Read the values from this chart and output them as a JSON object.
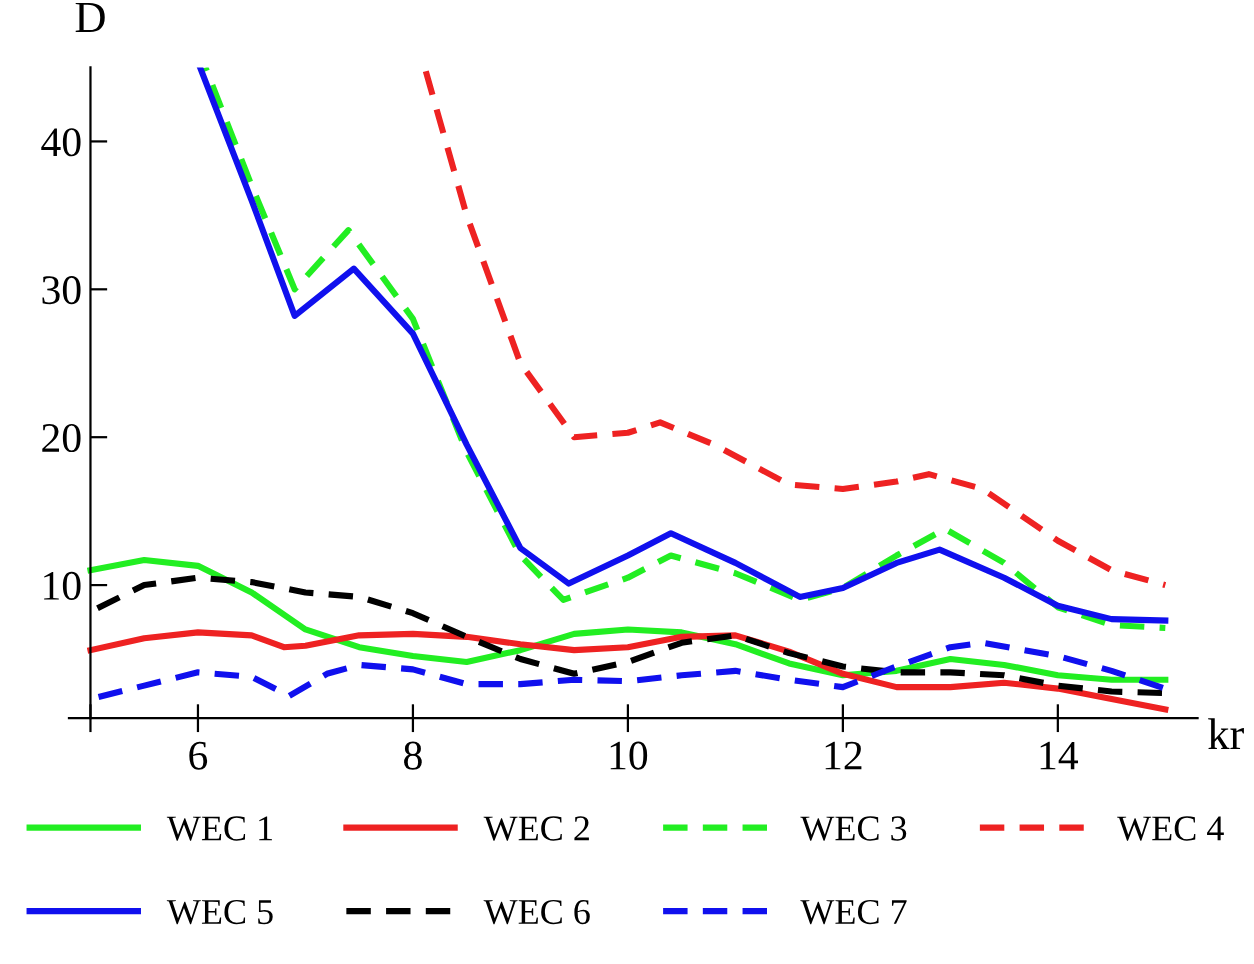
{
  "chart_data": {
    "type": "line",
    "xlabel": "kr",
    "ylabel": "D",
    "xlim": [
      4.8,
      15.3
    ],
    "ylim": [
      1,
      45
    ],
    "xticks": [
      {
        "value": 5,
        "label": null
      },
      6,
      8,
      10,
      12,
      14
    ],
    "yticks": [
      10,
      20,
      30,
      40
    ],
    "grid": false,
    "legend": "bottom",
    "series": [
      {
        "name": "WEC 1",
        "color": "#22ee22",
        "line_style": "solid",
        "x": [
          5,
          5.5,
          6,
          6.5,
          7,
          7.5,
          8,
          8.5,
          9,
          9.5,
          10,
          10.5,
          11,
          11.5,
          12,
          12.5,
          13,
          13.5,
          14,
          14.5,
          15
        ],
        "values": [
          11,
          11.7,
          11.3,
          9.5,
          7,
          5.8,
          5.2,
          4.8,
          5.6,
          6.7,
          7,
          6.8,
          6,
          4.7,
          3.9,
          4.2,
          5,
          4.6,
          3.9,
          3.6,
          3.6
        ]
      },
      {
        "name": "WEC 2",
        "color": "#ee2222",
        "line_style": "solid",
        "x": [
          5,
          5.5,
          6,
          6.5,
          6.8,
          7,
          7.5,
          8,
          8.5,
          9,
          9.5,
          10,
          10.5,
          11,
          11.5,
          12,
          12.5,
          13,
          13.5,
          14,
          14.5,
          15
        ],
        "values": [
          5.6,
          6.4,
          6.8,
          6.6,
          5.8,
          5.9,
          6.6,
          6.7,
          6.5,
          6,
          5.6,
          5.8,
          6.5,
          6.6,
          5.5,
          4,
          3.1,
          3.1,
          3.4,
          3,
          2.3,
          1.6
        ]
      },
      {
        "name": "WEC 3",
        "color": "#22ee22",
        "line_style": "dashed",
        "x": [
          6.07,
          6.5,
          6.9,
          7.4,
          8,
          8.5,
          9,
          9.4,
          10,
          10.4,
          11,
          11.6,
          12,
          12.5,
          12.95,
          13.5,
          14,
          14.5,
          15
        ],
        "values": [
          45,
          37,
          30,
          34,
          28,
          19,
          12,
          9,
          10.5,
          12,
          10.8,
          9,
          9.8,
          12,
          13.8,
          11.5,
          8.5,
          7.3,
          7.1
        ]
      },
      {
        "name": "WEC 4",
        "color": "#ee2222",
        "line_style": "dashed",
        "x": [
          8.11,
          8.5,
          9,
          9.5,
          10,
          10.3,
          10.8,
          11.5,
          12,
          12.5,
          12.8,
          13.3,
          14,
          14.5,
          15
        ],
        "values": [
          45,
          35,
          25,
          20,
          20.3,
          21,
          19.5,
          16.8,
          16.5,
          17,
          17.5,
          16.5,
          13,
          11,
          10
        ]
      },
      {
        "name": "WEC 5",
        "color": "#1010ee",
        "line_style": "solid",
        "x": [
          6.02,
          6.5,
          6.9,
          7.45,
          8,
          8.5,
          9,
          9.45,
          10,
          10.4,
          11,
          11.6,
          12,
          12.5,
          12.9,
          13.5,
          14,
          14.5,
          15
        ],
        "values": [
          45,
          36,
          28.2,
          31.4,
          27,
          19.5,
          12.5,
          10.1,
          12,
          13.5,
          11.5,
          9.2,
          9.8,
          11.5,
          12.4,
          10.5,
          8.6,
          7.7,
          7.6
        ]
      },
      {
        "name": "WEC 6",
        "color": "#000000",
        "line_style": "dashed",
        "x": [
          5,
          5.5,
          6,
          6.5,
          7,
          7.5,
          8,
          8.5,
          9,
          9.5,
          10,
          10.5,
          11,
          11.5,
          12,
          12.5,
          13,
          13.5,
          14,
          14.5,
          15
        ],
        "values": [
          8.2,
          10,
          10.5,
          10.2,
          9.5,
          9.2,
          8.1,
          6.5,
          5,
          4,
          4.8,
          6.1,
          6.6,
          5.4,
          4.5,
          4.1,
          4.1,
          3.9,
          3.2,
          2.8,
          2.7
        ]
      },
      {
        "name": "WEC 7",
        "color": "#1010ee",
        "line_style": "dashed",
        "x": [
          5,
          5.5,
          6,
          6.5,
          6.85,
          7.2,
          7.5,
          8,
          8.5,
          9,
          9.5,
          10,
          10.5,
          11,
          11.5,
          12,
          12.5,
          13,
          13.3,
          14,
          14.5,
          15
        ],
        "values": [
          2.3,
          3.2,
          4.1,
          3.8,
          2.5,
          4,
          4.6,
          4.3,
          3.3,
          3.3,
          3.6,
          3.5,
          3.9,
          4.2,
          3.6,
          3.1,
          4.5,
          5.8,
          6.1,
          5.2,
          4.2,
          3
        ]
      }
    ]
  }
}
